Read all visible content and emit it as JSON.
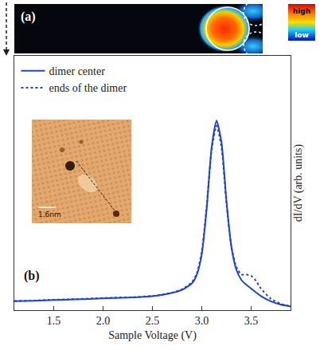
{
  "chart_data": {
    "type": "line",
    "panel_label": "(b)",
    "x_title": "Sample Voltage (V)",
    "y_title": "dI/dV (arb. units)",
    "x": [
      1.1,
      1.3,
      1.5,
      1.7,
      1.9,
      2.1,
      2.3,
      2.5,
      2.6,
      2.7,
      2.8,
      2.9,
      2.95,
      3.0,
      3.05,
      3.1,
      3.15,
      3.2,
      3.25,
      3.3,
      3.35,
      3.4,
      3.45,
      3.5,
      3.55,
      3.6,
      3.7,
      3.8,
      3.9
    ],
    "series": [
      {
        "name": "dimer center",
        "color": "#1f45c8",
        "line_style": "solid",
        "values": [
          0.035,
          0.037,
          0.04,
          0.042,
          0.045,
          0.048,
          0.05,
          0.055,
          0.06,
          0.068,
          0.08,
          0.105,
          0.14,
          0.22,
          0.4,
          0.64,
          0.745,
          0.66,
          0.43,
          0.25,
          0.16,
          0.12,
          0.1,
          0.085,
          0.07,
          0.055,
          0.035,
          0.022,
          0.015
        ]
      },
      {
        "name": "ends of the dimer",
        "color": "#1f45c8",
        "line_style": "dotted",
        "values": [
          0.036,
          0.038,
          0.041,
          0.043,
          0.046,
          0.049,
          0.051,
          0.056,
          0.061,
          0.069,
          0.082,
          0.11,
          0.145,
          0.23,
          0.41,
          0.63,
          0.725,
          0.64,
          0.42,
          0.25,
          0.17,
          0.14,
          0.14,
          0.135,
          0.115,
          0.085,
          0.045,
          0.025,
          0.015
        ]
      }
    ],
    "xlim": [
      1.1,
      3.9
    ],
    "xticks": [
      1.5,
      {
        "value": 2,
        "label": "2.0"
      },
      2.5,
      {
        "value": 3,
        "label": "3.0"
      },
      3.5
    ],
    "ylim": [
      0,
      1
    ],
    "tick_labels": "x",
    "legend": "top left",
    "grid": false
  },
  "map_panel": {
    "label": "(a)",
    "colorbar": {
      "high": "high",
      "low": "low"
    }
  },
  "inset": {
    "scale_bar": "1.6nm"
  }
}
